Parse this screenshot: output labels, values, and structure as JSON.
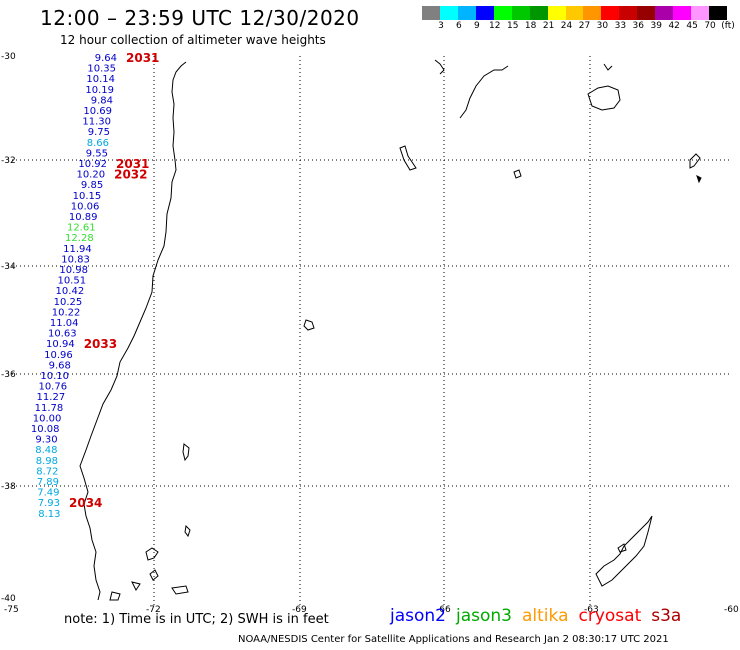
{
  "header": {
    "title": "12:00 – 23:59 UTC 12/30/2020",
    "subtitle": "12 hour collection of altimeter wave heights"
  },
  "colorbar": {
    "swatches": [
      "#808080",
      "#00ffff",
      "#00b4ff",
      "#0000ff",
      "#00ff00",
      "#00c800",
      "#009600",
      "#ffff00",
      "#ffc800",
      "#ff9600",
      "#ff0000",
      "#c80000",
      "#960000",
      "#aa00aa",
      "#ff00ff",
      "#ff96ff",
      "#000000"
    ],
    "labels": [
      "3",
      "6",
      "9",
      "12",
      "15",
      "18",
      "21",
      "24",
      "27",
      "30",
      "33",
      "36",
      "39",
      "42",
      "45",
      "70",
      "(ft)"
    ]
  },
  "map": {
    "lat_labels": [
      "-30",
      "-32",
      "-34",
      "-36",
      "-38",
      "-40"
    ],
    "lon_labels": [
      "-75",
      "-72",
      "-69",
      "-66",
      "-63",
      "-60"
    ],
    "coast_icon": "coastline-outline",
    "track": [
      {
        "v": "9.64",
        "c": "#0000cc"
      },
      {
        "v": "10.35",
        "c": "#0000cc"
      },
      {
        "v": "10.14",
        "c": "#0000cc"
      },
      {
        "v": "10.19",
        "c": "#0000cc"
      },
      {
        "v": "9.84",
        "c": "#0000cc"
      },
      {
        "v": "10.69",
        "c": "#0000cc"
      },
      {
        "v": "11.30",
        "c": "#0000cc"
      },
      {
        "v": "9.75",
        "c": "#0000cc"
      },
      {
        "v": "8.66",
        "c": "#00a8e0"
      },
      {
        "v": "9.55",
        "c": "#0000cc"
      },
      {
        "v": "10.92",
        "c": "#0000cc"
      },
      {
        "v": "10.20",
        "c": "#0000cc"
      },
      {
        "v": "9.85",
        "c": "#0000cc"
      },
      {
        "v": "10.15",
        "c": "#0000cc"
      },
      {
        "v": "10.06",
        "c": "#0000cc"
      },
      {
        "v": "10.89",
        "c": "#0000cc"
      },
      {
        "v": "12.61",
        "c": "#33dd33"
      },
      {
        "v": "12.28",
        "c": "#33dd33"
      },
      {
        "v": "11.94",
        "c": "#0000cc"
      },
      {
        "v": "10.83",
        "c": "#0000cc"
      },
      {
        "v": "10.98",
        "c": "#0000cc"
      },
      {
        "v": "10.51",
        "c": "#0000cc"
      },
      {
        "v": "10.42",
        "c": "#0000cc"
      },
      {
        "v": "10.25",
        "c": "#0000cc"
      },
      {
        "v": "10.22",
        "c": "#0000cc"
      },
      {
        "v": "11.04",
        "c": "#0000cc"
      },
      {
        "v": "10.63",
        "c": "#0000cc"
      },
      {
        "v": "10.94",
        "c": "#0000cc"
      },
      {
        "v": "10.96",
        "c": "#0000cc"
      },
      {
        "v": "9.68",
        "c": "#0000cc"
      },
      {
        "v": "10.10",
        "c": "#0000cc"
      },
      {
        "v": "10.76",
        "c": "#0000cc"
      },
      {
        "v": "11.27",
        "c": "#0000cc"
      },
      {
        "v": "11.78",
        "c": "#0000cc"
      },
      {
        "v": "10.00",
        "c": "#0000cc"
      },
      {
        "v": "10.08",
        "c": "#0000cc"
      },
      {
        "v": "9.30",
        "c": "#0000cc"
      },
      {
        "v": "8.48",
        "c": "#00a8e0"
      },
      {
        "v": "8.98",
        "c": "#00a8e0"
      },
      {
        "v": "8.72",
        "c": "#00a8e0"
      },
      {
        "v": "7.89",
        "c": "#00a8e0"
      },
      {
        "v": "7.49",
        "c": "#00a8e0"
      },
      {
        "v": "7.93",
        "c": "#00a8e0"
      },
      {
        "v": "8.13",
        "c": "#00a8e0"
      }
    ],
    "time_labels": [
      {
        "t": "2031",
        "row": 0
      },
      {
        "t": "2031",
        "row": 10
      },
      {
        "t": "2032",
        "row": 11
      },
      {
        "t": "2033",
        "row": 27
      },
      {
        "t": "2034",
        "row": 42
      }
    ]
  },
  "footer": {
    "note": "note:  1) Time is in UTC;  2) SWH is in feet",
    "legend": [
      {
        "name": "jason2",
        "color": "#0000ff"
      },
      {
        "name": "jason3",
        "color": "#00aa00"
      },
      {
        "name": "altika",
        "color": "#ff9900"
      },
      {
        "name": "cryosat",
        "color": "#ff0000"
      },
      {
        "name": "s3a",
        "color": "#aa0000"
      }
    ],
    "credit": "NOAA/NESDIS Center for Satellite Applications and Research    Jan  2 08:30:17 UTC 2021"
  }
}
